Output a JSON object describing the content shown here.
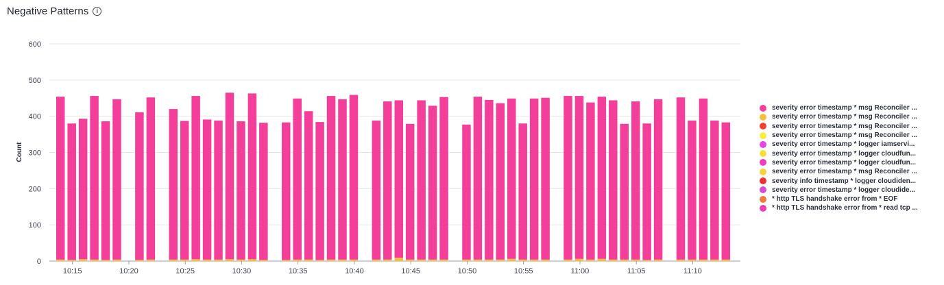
{
  "header": {
    "title": "Negative Patterns",
    "info_icon": "info-icon"
  },
  "colors": {
    "primary": "#f43f9a",
    "secondary": "#f7c03a",
    "grid": "#e6e6e6"
  },
  "chart_data": {
    "type": "bar",
    "stacked": true,
    "ylabel": "Count",
    "xlabel": "",
    "ylim": [
      0,
      600
    ],
    "yticks": [
      0,
      100,
      200,
      300,
      400,
      500,
      600
    ],
    "grid": true,
    "legend_position": "right",
    "x_start_minutes": 614,
    "x_step_minutes": 1,
    "xticks": [
      "10:15",
      "10:20",
      "10:25",
      "10:30",
      "10:35",
      "10:40",
      "10:45",
      "10:50",
      "10:55",
      "11:00",
      "11:05",
      "11:10"
    ],
    "xtick_minutes": [
      615,
      620,
      625,
      630,
      635,
      640,
      645,
      650,
      655,
      660,
      665,
      670
    ],
    "categories_minutes": [
      614,
      615,
      616,
      617,
      618,
      619,
      621,
      622,
      624,
      625,
      626,
      627,
      628,
      629,
      630,
      631,
      632,
      634,
      635,
      636,
      637,
      638,
      639,
      640,
      642,
      643,
      644,
      645,
      646,
      647,
      648,
      650,
      651,
      652,
      653,
      654,
      655,
      656,
      657,
      659,
      660,
      661,
      662,
      663,
      664,
      665,
      666,
      667,
      669,
      670,
      671,
      672,
      673
    ],
    "series": [
      {
        "name": "severity error timestamp * msg Reconciler ...",
        "color": "#f43f9a",
        "values": [
          450,
          377,
          388,
          452,
          383,
          443,
          408,
          448,
          416,
          383,
          451,
          387,
          384,
          460,
          382,
          458,
          379,
          380,
          445,
          410,
          381,
          452,
          443,
          455,
          384,
          437,
          435,
          375,
          440,
          425,
          449,
          373,
          450,
          441,
          432,
          443,
          376,
          445,
          447,
          452,
          450,
          434,
          448,
          440,
          375,
          437,
          377,
          443,
          448,
          384,
          445,
          384,
          379
        ]
      },
      {
        "name": "severity error timestamp * msg Reconciler ...",
        "color": "#f7c03a",
        "values": [
          4,
          3,
          5,
          4,
          3,
          4,
          3,
          4,
          4,
          4,
          5,
          4,
          4,
          5,
          4,
          5,
          3,
          3,
          4,
          4,
          3,
          4,
          4,
          4,
          4,
          4,
          9,
          4,
          4,
          4,
          4,
          4,
          4,
          4,
          4,
          6,
          4,
          4,
          4,
          4,
          6,
          4,
          6,
          4,
          4,
          4,
          3,
          4,
          4,
          4,
          4,
          4,
          4
        ]
      }
    ]
  },
  "legend": {
    "items": [
      {
        "label": "severity error timestamp * msg Reconciler ...",
        "color": "#f43f9a"
      },
      {
        "label": "severity error timestamp * msg Reconciler ...",
        "color": "#f7c03a"
      },
      {
        "label": "severity error timestamp * msg Reconciler ...",
        "color": "#f4402f"
      },
      {
        "label": "severity error timestamp * msg Reconciler ...",
        "color": "#f7ef3a"
      },
      {
        "label": "severity error timestamp * logger iamservi...",
        "color": "#e647e0"
      },
      {
        "label": "severity error timestamp * logger cloudfun...",
        "color": "#f7df3a"
      },
      {
        "label": "severity error timestamp * logger cloudfun...",
        "color": "#ee3fbf"
      },
      {
        "label": "severity error timestamp * msg Reconciler ...",
        "color": "#f7d23a"
      },
      {
        "label": "severity info timestamp * logger cloudiden...",
        "color": "#f03030"
      },
      {
        "label": "severity error timestamp * logger cloudide...",
        "color": "#d84bd6"
      },
      {
        "label": "* http TLS handshake error from * EOF",
        "color": "#f07a3a"
      },
      {
        "label": "* http TLS handshake error from * read tcp ...",
        "color": "#f03fb0"
      }
    ]
  }
}
